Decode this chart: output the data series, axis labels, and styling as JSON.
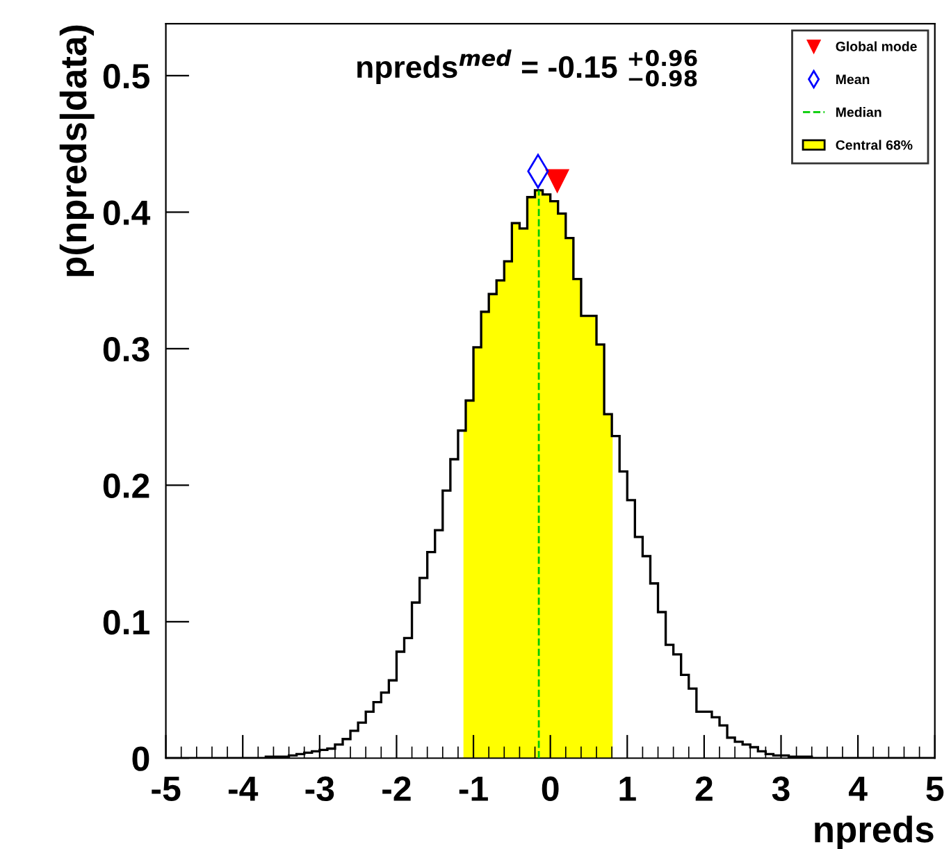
{
  "chart_data": {
    "type": "histogram",
    "title": "npreds$^{med}$ = -0.15 $^{+0.96}$$_{−0.98}$",
    "xlabel": "npreds",
    "ylabel": "p(npreds|data)",
    "bins": [
      -5.0,
      -4.9,
      -4.8,
      -4.7,
      -4.6,
      -4.5,
      -4.4,
      -4.3,
      -4.2,
      -4.1,
      -4.0,
      -3.9,
      -3.8,
      -3.7,
      -3.6,
      -3.5,
      -3.4,
      -3.3,
      -3.2,
      -3.1,
      -3.0,
      -2.9,
      -2.8,
      -2.7,
      -2.6,
      -2.5,
      -2.4,
      -2.3,
      -2.2,
      -2.1,
      -2.0,
      -1.9,
      -1.8,
      -1.7,
      -1.6,
      -1.5,
      -1.4,
      -1.3,
      -1.2,
      -1.1,
      -1.0,
      -0.9,
      -0.8,
      -0.7,
      -0.6,
      -0.5,
      -0.4,
      -0.3,
      -0.2,
      -0.1,
      0.0,
      0.1,
      0.2,
      0.3,
      0.4,
      0.5,
      0.6,
      0.7,
      0.8,
      0.9,
      1.0,
      1.1,
      1.2,
      1.3,
      1.4,
      1.5,
      1.6,
      1.7,
      1.8,
      1.9,
      2.0,
      2.1,
      2.2,
      2.3,
      2.4,
      2.5,
      2.6,
      2.7,
      2.8,
      2.9,
      3.0,
      3.1,
      3.2,
      3.3,
      3.4,
      3.5,
      3.6,
      3.7,
      3.8,
      3.9,
      4.0,
      4.1,
      4.2,
      4.3,
      4.4,
      4.5,
      4.6,
      4.7,
      4.8,
      4.9,
      5.0
    ],
    "values": [
      0,
      0,
      0,
      0,
      0,
      0,
      0,
      0,
      0,
      0,
      0,
      0,
      0,
      0.001,
      0.001,
      0.001,
      0.002,
      0.003,
      0.004,
      0.005,
      0.006,
      0.007,
      0.01,
      0.014,
      0.02,
      0.026,
      0.034,
      0.041,
      0.048,
      0.057,
      0.078,
      0.088,
      0.114,
      0.132,
      0.151,
      0.167,
      0.196,
      0.219,
      0.24,
      0.262,
      0.301,
      0.327,
      0.34,
      0.35,
      0.364,
      0.392,
      0.388,
      0.411,
      0.416,
      0.413,
      0.408,
      0.399,
      0.381,
      0.351,
      0.324,
      0.324,
      0.303,
      0.252,
      0.236,
      0.21,
      0.189,
      0.162,
      0.148,
      0.128,
      0.107,
      0.083,
      0.076,
      0.061,
      0.051,
      0.034,
      0.034,
      0.03,
      0.024,
      0.015,
      0.012,
      0.01,
      0.008,
      0.005,
      0.003,
      0.002,
      0.002,
      0.001,
      0.001,
      0.001,
      0,
      0,
      0,
      0,
      0,
      0,
      0,
      0,
      0,
      0,
      0,
      0,
      0,
      0,
      0,
      0
    ],
    "color": "#000000",
    "series": [
      {
        "name": "Global mode",
        "type": "scatter",
        "marker": "triangle",
        "color": "#ff0000",
        "x": [
          0.09
        ],
        "values": [
          0.423
        ]
      },
      {
        "name": "Mean",
        "type": "scatter",
        "marker": "diamond",
        "color": "#0000ff",
        "x": [
          -0.16
        ],
        "values": [
          0.43
        ]
      }
    ],
    "ref_lines": [
      {
        "axis": "x",
        "value": -0.15,
        "label": "Median",
        "color": "#00cc00",
        "line_style": "dashed"
      }
    ],
    "bands": [
      {
        "axis": "x",
        "from": -1.13,
        "to": 0.81,
        "label": "Central 68%",
        "color": "#ffff00"
      }
    ],
    "xlim": [
      -5,
      5
    ],
    "ylim": [
      0,
      0.538
    ],
    "xticks": [
      -5,
      -4,
      -3,
      -2,
      -1,
      0,
      1,
      2,
      3,
      4,
      5
    ],
    "yticks": [
      0,
      0.1,
      0.2,
      0.3,
      0.4,
      0.5
    ],
    "grid": false,
    "legend": "top right"
  }
}
